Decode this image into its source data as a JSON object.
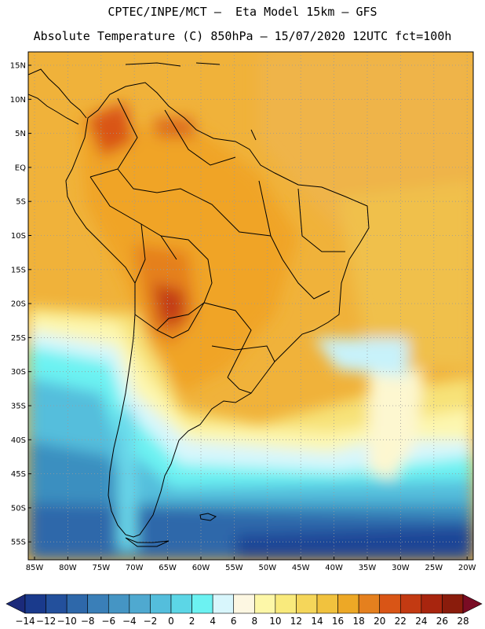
{
  "header": {
    "line1": "CPTEC/INPE/MCT –  Eta Model 15km – GFS",
    "line2": "Absolute Temperature (C) 850hPa – 15/07/2020 12UTC fct=100h"
  },
  "map": {
    "lat_labels": [
      "15N",
      "10N",
      "5N",
      "EQ",
      "5S",
      "10S",
      "15S",
      "20S",
      "25S",
      "30S",
      "35S",
      "40S",
      "45S",
      "50S",
      "55S"
    ],
    "lon_labels": [
      "85W",
      "80W",
      "75W",
      "70W",
      "65W",
      "60W",
      "55W",
      "50W",
      "45W",
      "40W",
      "35W",
      "30W",
      "25W",
      "20W"
    ]
  },
  "colorbar": {
    "labels": [
      "-14",
      "-12",
      "-10",
      "-8",
      "-6",
      "-4",
      "-2",
      "0",
      "2",
      "4",
      "6",
      "8",
      "10",
      "12",
      "14",
      "16",
      "18",
      "20",
      "22",
      "24",
      "26",
      "28"
    ],
    "colors": [
      "#1a3a8c",
      "#23509c",
      "#2e68aa",
      "#3a7fb8",
      "#4595c4",
      "#4fa9d0",
      "#54bedc",
      "#5cd6e6",
      "#6cf2f2",
      "#d8f6fc",
      "#fdf7e2",
      "#fdf7a8",
      "#f9ea7c",
      "#f5d65a",
      "#f1c23e",
      "#eda826",
      "#e5801e",
      "#d95516",
      "#c33a12",
      "#a8250e",
      "#8a1c0c"
    ],
    "under_color": "#1b2a7a",
    "over_color": "#7a0c24"
  }
}
